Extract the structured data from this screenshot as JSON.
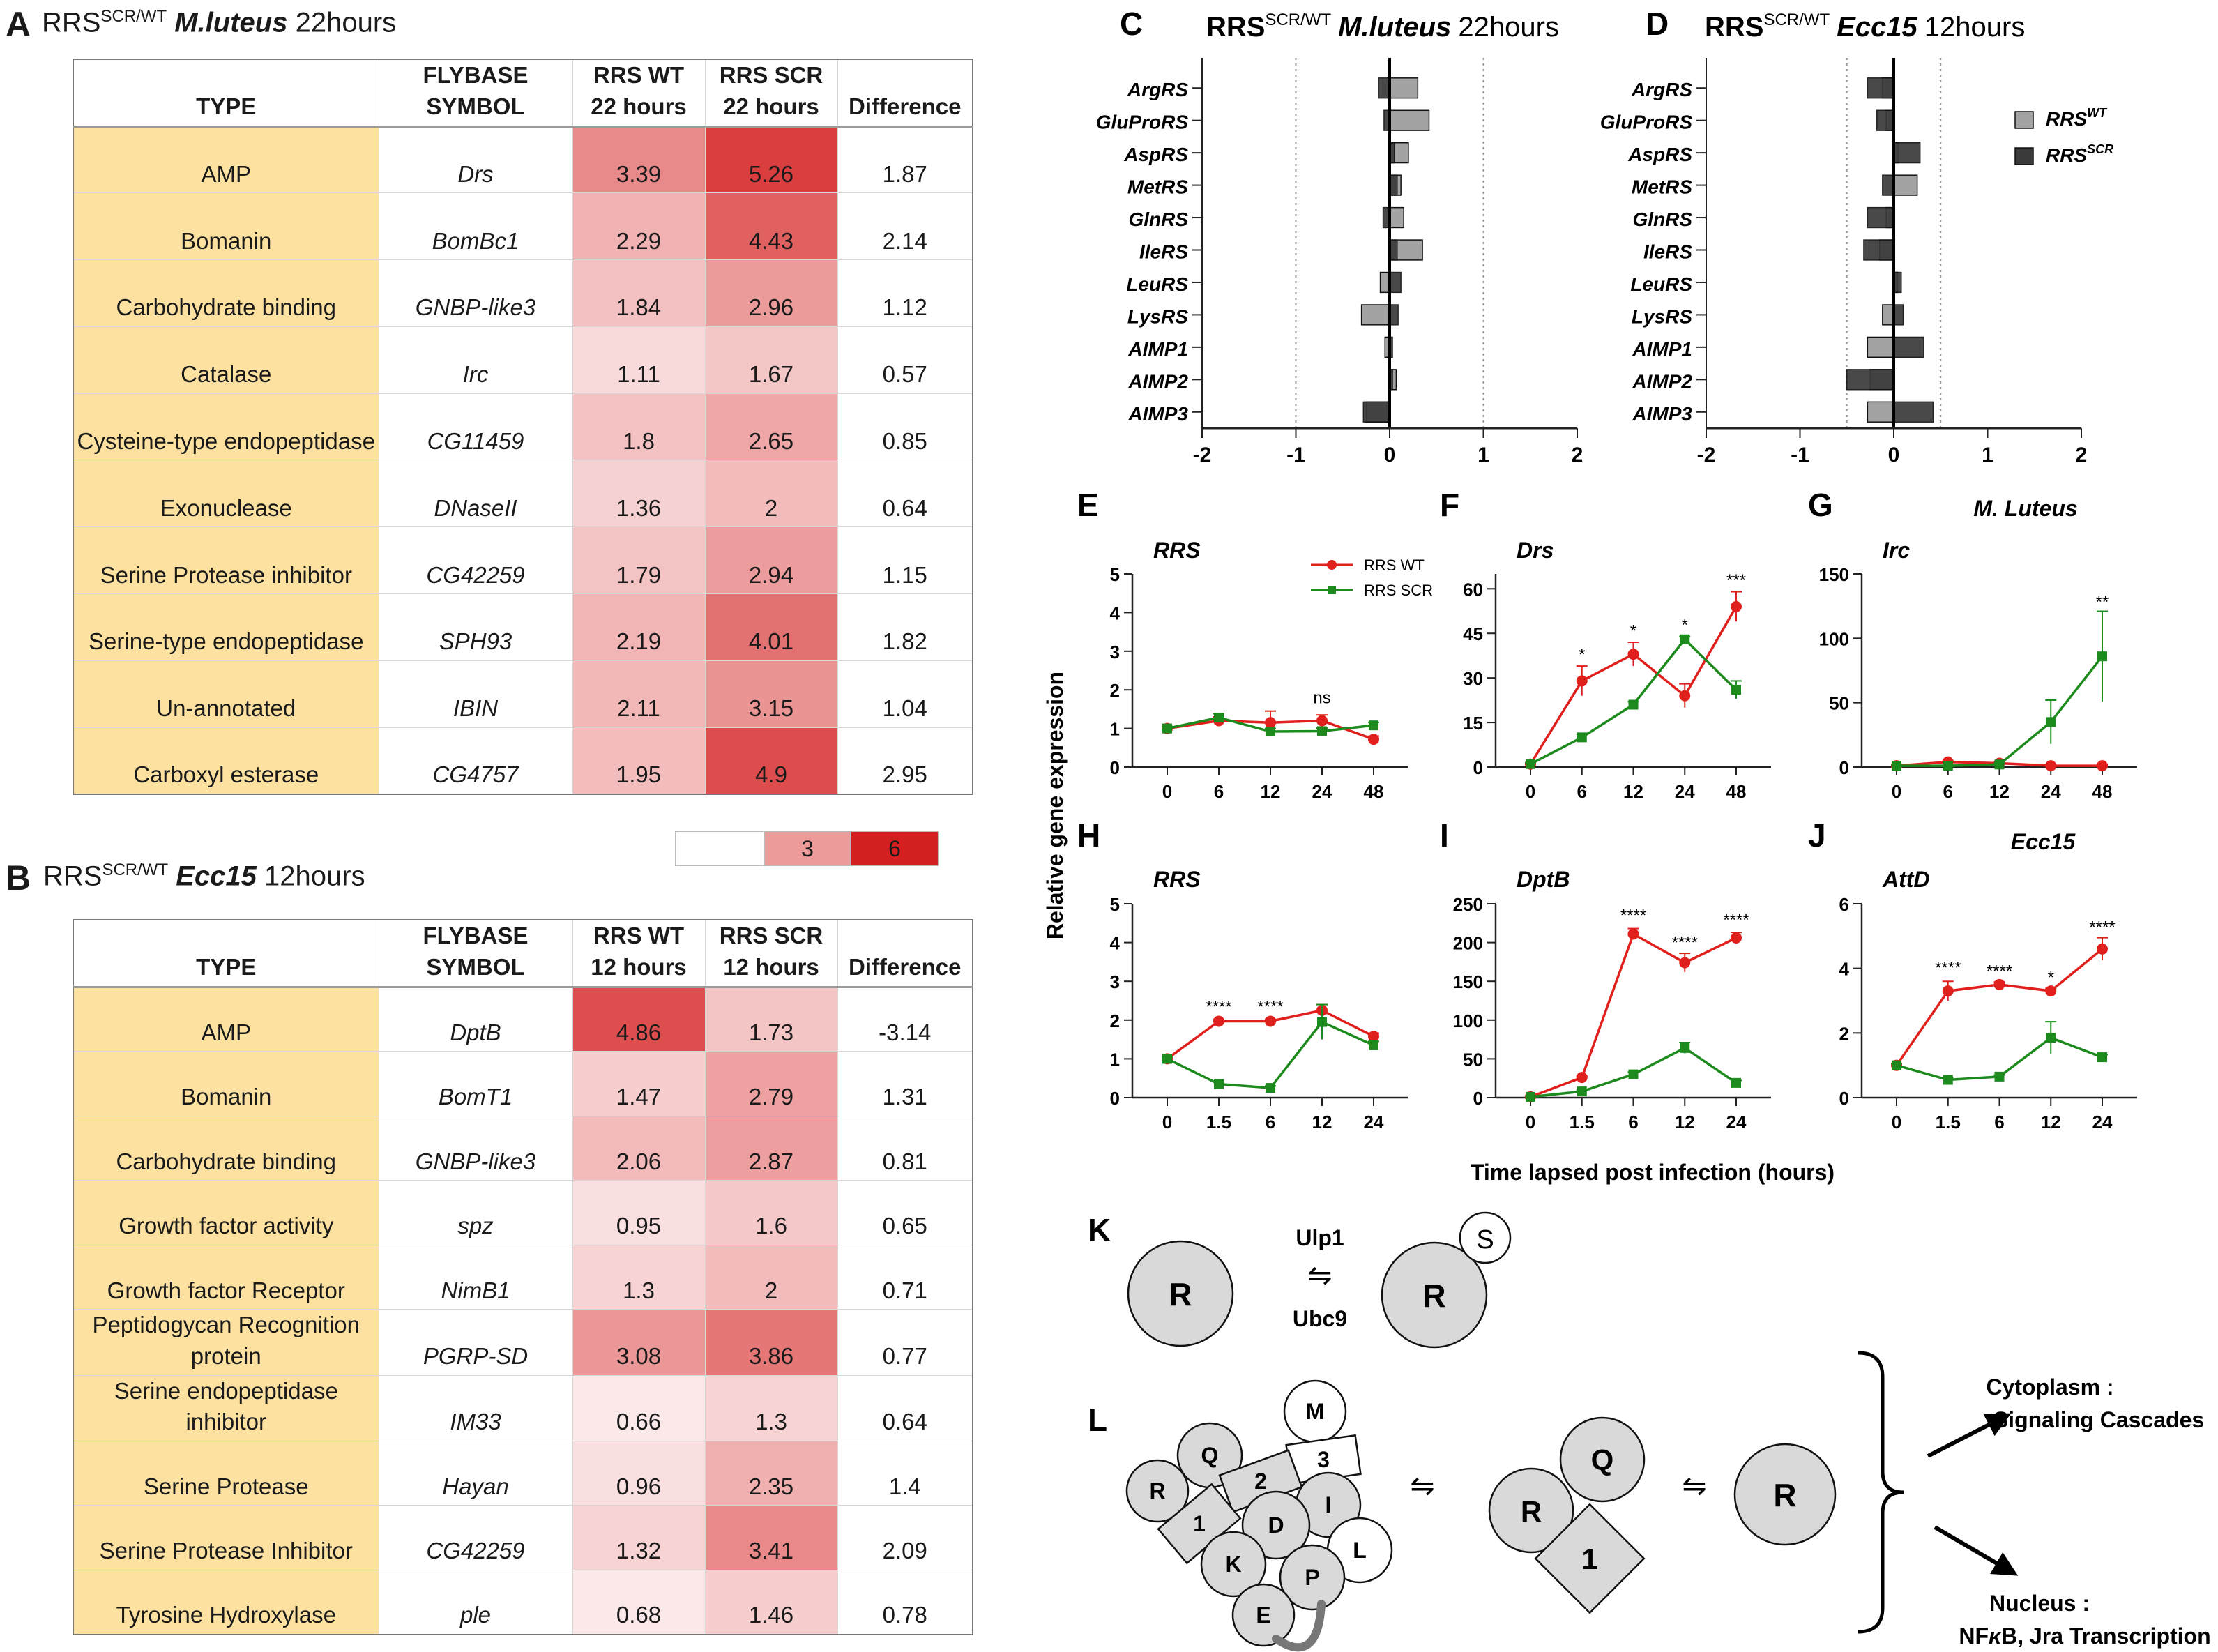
{
  "panelA": {
    "letter": "A",
    "title": {
      "prefix": "RRS",
      "sup": "SCR/WT",
      "organism": "M.luteus",
      "time": "22hours"
    },
    "headers": [
      "TYPE",
      "FLYBASE SYMBOL",
      "RRS WT 22 hours",
      "RRS SCR 22 hours",
      "Difference"
    ],
    "header_lines": [
      [
        "TYPE"
      ],
      [
        "FLYBASE",
        "SYMBOL"
      ],
      [
        "RRS WT",
        "22 hours"
      ],
      [
        "RRS SCR",
        "22 hours"
      ],
      [
        "Difference"
      ]
    ],
    "rows": [
      {
        "type": "AMP",
        "symbol": "Drs",
        "wt": "3.39",
        "scr": "5.26",
        "diff": "1.87"
      },
      {
        "type": "Bomanin",
        "symbol": "BomBc1",
        "wt": "2.29",
        "scr": "4.43",
        "diff": "2.14"
      },
      {
        "type": "Carbohydrate binding",
        "symbol": "GNBP-like3",
        "wt": "1.84",
        "scr": "2.96",
        "diff": "1.12"
      },
      {
        "type": "Catalase",
        "symbol": "Irc",
        "wt": "1.11",
        "scr": "1.67",
        "diff": "0.57"
      },
      {
        "type": "Cysteine-type endopeptidase",
        "symbol": "CG11459",
        "wt": "1.8",
        "scr": "2.65",
        "diff": "0.85"
      },
      {
        "type": "Exonuclease",
        "symbol": "DNaseII",
        "wt": "1.36",
        "scr": "2",
        "diff": "0.64"
      },
      {
        "type": "Serine Protease inhibitor",
        "symbol": "CG42259",
        "wt": "1.79",
        "scr": "2.94",
        "diff": "1.15"
      },
      {
        "type": "Serine-type endopeptidase",
        "symbol": "SPH93",
        "wt": "2.19",
        "scr": "4.01",
        "diff": "1.82"
      },
      {
        "type": "Un-annotated",
        "symbol": "IBIN",
        "wt": "2.11",
        "scr": "3.15",
        "diff": "1.04"
      },
      {
        "type": "Carboxyl esterase",
        "symbol": "CG4757",
        "wt": "1.95",
        "scr": "4.9",
        "diff": "2.95"
      }
    ]
  },
  "heat_legend": {
    "values": [
      "",
      "3",
      "6"
    ],
    "colors": [
      "#ffffff",
      "#ec9a9a",
      "#d42020"
    ]
  },
  "panelB": {
    "letter": "B",
    "title": {
      "prefix": "RRS",
      "sup": "SCR/WT",
      "organism": "Ecc15",
      "time": "12hours"
    },
    "headers": [
      "TYPE",
      "FLYBASE SYMBOL",
      "RRS WT 12 hours",
      "RRS SCR 12 hours",
      "Difference"
    ],
    "header_lines": [
      [
        "TYPE"
      ],
      [
        "FLYBASE",
        "SYMBOL"
      ],
      [
        "RRS WT",
        "12 hours"
      ],
      [
        "RRS SCR",
        "12 hours"
      ],
      [
        "Difference"
      ]
    ],
    "rows": [
      {
        "type": "AMP",
        "symbol": "DptB",
        "wt": "4.86",
        "scr": "1.73",
        "diff": "-3.14"
      },
      {
        "type": "Bomanin",
        "symbol": "BomT1",
        "wt": "1.47",
        "scr": "2.79",
        "diff": "1.31"
      },
      {
        "type": "Carbohydrate binding",
        "symbol": "GNBP-like3",
        "wt": "2.06",
        "scr": "2.87",
        "diff": "0.81"
      },
      {
        "type": "Growth factor activity",
        "symbol": "spz",
        "wt": "0.95",
        "scr": "1.6",
        "diff": "0.65"
      },
      {
        "type": "Growth factor Receptor",
        "symbol": "NimB1",
        "wt": "1.3",
        "scr": "2",
        "diff": "0.71"
      },
      {
        "type": "Peptidogycan Recognition protein",
        "symbol": "PGRP-SD",
        "wt": "3.08",
        "scr": "3.86",
        "diff": "0.77"
      },
      {
        "type": "Serine endopeptidase inhibitor",
        "symbol": "IM33",
        "wt": "0.66",
        "scr": "1.3",
        "diff": "0.64"
      },
      {
        "type": "Serine Protease",
        "symbol": "Hayan",
        "wt": "0.96",
        "scr": "2.35",
        "diff": "1.4"
      },
      {
        "type": "Serine Protease Inhibitor",
        "symbol": "CG42259",
        "wt": "1.32",
        "scr": "3.41",
        "diff": "2.09"
      },
      {
        "type": "Tyrosine Hydroxylase",
        "symbol": "ple",
        "wt": "0.68",
        "scr": "1.46",
        "diff": "0.78"
      }
    ]
  },
  "chart_data": [
    {
      "panel": "C",
      "type": "bar",
      "orientation": "horizontal",
      "title": {
        "prefix": "RRS",
        "sup": "SCR/WT",
        "organism": "M.luteus",
        "time": "22hours"
      },
      "categories": [
        "ArgRS",
        "GluProRS",
        "AspRS",
        "MetRS",
        "GlnRS",
        "IleRS",
        "LeuRS",
        "LysRS",
        "AIMP1",
        "AIMP2",
        "AIMP3"
      ],
      "series": [
        {
          "name": "RRS WT",
          "color": "#a3a3a3",
          "values": [
            0.3,
            0.42,
            0.2,
            0.12,
            0.15,
            0.35,
            -0.1,
            -0.3,
            -0.05,
            0.07,
            -0.25
          ]
        },
        {
          "name": "RRS SCR",
          "color": "#3a3a3a",
          "values": [
            -0.12,
            -0.06,
            0.05,
            0.08,
            -0.07,
            0.08,
            0.12,
            0.09,
            0.03,
            0.03,
            -0.28
          ]
        }
      ],
      "xlim": [
        -2,
        2
      ],
      "xticks": [
        "-2",
        "-1",
        "0",
        "1",
        "2"
      ],
      "reference_lines": [
        -1,
        1
      ]
    },
    {
      "panel": "D",
      "type": "bar",
      "orientation": "horizontal",
      "title": {
        "prefix": "RRS",
        "sup": "SCR/WT",
        "organism": "Ecc15",
        "time": "12hours"
      },
      "categories": [
        "ArgRS",
        "GluProRS",
        "AspRS",
        "MetRS",
        "GlnRS",
        "IleRS",
        "LeuRS",
        "LysRS",
        "AIMP1",
        "AIMP2",
        "AIMP3"
      ],
      "series": [
        {
          "name": "RRS",
          "sup": "WT",
          "color": "#a3a3a3",
          "values": [
            -0.12,
            -0.08,
            0.05,
            0.25,
            -0.08,
            -0.15,
            0.04,
            -0.12,
            -0.28,
            -0.25,
            -0.28
          ]
        },
        {
          "name": "RRS",
          "sup": "SCR",
          "color": "#3a3a3a",
          "values": [
            -0.28,
            -0.18,
            0.28,
            -0.12,
            -0.28,
            -0.32,
            0.08,
            0.1,
            0.32,
            -0.5,
            0.42
          ]
        }
      ],
      "xlim": [
        -2,
        2
      ],
      "xticks": [
        "-2",
        "-1",
        "0",
        "1",
        "2"
      ],
      "reference_lines": [
        -0.5,
        0.5
      ],
      "legend": [
        "RRS",
        "RRS"
      ],
      "legend_sup": [
        "WT",
        "SCR"
      ]
    },
    {
      "panel": "E",
      "type": "line",
      "title": "RRS",
      "x": [
        "0",
        "6",
        "12",
        "24",
        "48"
      ],
      "series": [
        {
          "name": "RRS WT",
          "color": "#e0201c",
          "values": [
            1,
            1.2,
            1.15,
            1.2,
            0.72
          ],
          "err": [
            0.05,
            0.1,
            0.3,
            0.15,
            0.08
          ]
        },
        {
          "name": "RRS SCR",
          "color": "#1c8a1c",
          "values": [
            1,
            1.28,
            0.92,
            0.93,
            1.08
          ],
          "err": [
            0.05,
            0.1,
            0.08,
            0.08,
            0.08
          ]
        }
      ],
      "ylim": [
        0,
        5
      ],
      "yticks": [
        "0",
        "1",
        "2",
        "3",
        "4",
        "5"
      ],
      "annotations": [
        {
          "x_index": 3,
          "text": "ns",
          "y": 1.65
        }
      ],
      "legend": [
        "RRS WT",
        "RRS SCR"
      ]
    },
    {
      "panel": "F",
      "type": "line",
      "title": "Drs",
      "x": [
        "0",
        "6",
        "12",
        "24",
        "48"
      ],
      "series": [
        {
          "name": "RRS WT",
          "color": "#e0201c",
          "values": [
            1,
            29,
            38,
            24,
            54
          ],
          "err": [
            0.5,
            5,
            4,
            4,
            5
          ]
        },
        {
          "name": "RRS SCR",
          "color": "#1c8a1c",
          "values": [
            1,
            10,
            21,
            43,
            26
          ],
          "err": [
            0.5,
            1,
            1,
            1,
            3
          ]
        }
      ],
      "ylim": [
        0,
        65
      ],
      "yticks": [
        "0",
        "15",
        "30",
        "45",
        "60"
      ],
      "annotations": [
        {
          "x_index": 1,
          "text": "*",
          "y": 36
        },
        {
          "x_index": 2,
          "text": "*",
          "y": 44
        },
        {
          "x_index": 3,
          "text": "*",
          "y": 46
        },
        {
          "x_index": 4,
          "text": "***",
          "y": 61
        }
      ]
    },
    {
      "panel": "G",
      "type": "line",
      "title": "Irc",
      "subtitle": "M. Luteus",
      "x": [
        "0",
        "6",
        "12",
        "24",
        "48"
      ],
      "series": [
        {
          "name": "RRS WT",
          "color": "#e0201c",
          "values": [
            1,
            4,
            3,
            1,
            1
          ],
          "err": [
            0.5,
            1,
            1,
            0.5,
            0.5
          ]
        },
        {
          "name": "RRS SCR",
          "color": "#1c8a1c",
          "values": [
            1,
            1,
            2,
            35,
            86
          ],
          "err": [
            0.5,
            0.5,
            1,
            17,
            35
          ]
        }
      ],
      "ylim": [
        0,
        150
      ],
      "yticks": [
        "0",
        "50",
        "100",
        "150"
      ],
      "annotations": [
        {
          "x_index": 4,
          "text": "**",
          "y": 124
        }
      ]
    },
    {
      "panel": "H",
      "type": "line",
      "title": "RRS",
      "x": [
        "0",
        "1.5",
        "6",
        "12",
        "24"
      ],
      "series": [
        {
          "name": "RRS WT",
          "color": "#e0201c",
          "values": [
            1,
            1.97,
            1.97,
            2.25,
            1.58
          ],
          "err": [
            0.05,
            0.05,
            0.05,
            0.15,
            0.08
          ]
        },
        {
          "name": "RRS SCR",
          "color": "#1c8a1c",
          "values": [
            1,
            0.35,
            0.25,
            1.95,
            1.35
          ],
          "err": [
            0.05,
            0.05,
            0.05,
            0.45,
            0.1
          ]
        }
      ],
      "ylim": [
        0,
        5
      ],
      "yticks": [
        "0",
        "1",
        "2",
        "3",
        "4",
        "5"
      ],
      "annotations": [
        {
          "x_index": 1,
          "text": "****",
          "y": 2.2
        },
        {
          "x_index": 2,
          "text": "****",
          "y": 2.2
        }
      ]
    },
    {
      "panel": "I",
      "type": "line",
      "title": "DptB",
      "x": [
        "0",
        "1.5",
        "6",
        "12",
        "24"
      ],
      "series": [
        {
          "name": "RRS WT",
          "color": "#e0201c",
          "values": [
            1,
            26,
            211,
            174,
            206
          ],
          "err": [
            0.5,
            2,
            7,
            12,
            7
          ]
        },
        {
          "name": "RRS SCR",
          "color": "#1c8a1c",
          "values": [
            1,
            8,
            30,
            64,
            19
          ],
          "err": [
            0.5,
            2,
            3,
            7,
            3
          ]
        }
      ],
      "ylim": [
        0,
        250
      ],
      "yticks": [
        "0",
        "50",
        "100",
        "150",
        "200",
        "250"
      ],
      "annotations": [
        {
          "x_index": 2,
          "text": "****",
          "y": 228
        },
        {
          "x_index": 3,
          "text": "****",
          "y": 193
        },
        {
          "x_index": 4,
          "text": "****",
          "y": 222
        }
      ]
    },
    {
      "panel": "J",
      "type": "line",
      "title": "AttD",
      "subtitle": "Ecc15",
      "x": [
        "0",
        "1.5",
        "6",
        "12",
        "24"
      ],
      "series": [
        {
          "name": "RRS WT",
          "color": "#e0201c",
          "values": [
            1,
            3.3,
            3.5,
            3.3,
            4.6
          ],
          "err": [
            0.05,
            0.3,
            0.08,
            0.08,
            0.35
          ]
        },
        {
          "name": "RRS SCR",
          "color": "#1c8a1c",
          "values": [
            1,
            0.55,
            0.65,
            1.85,
            1.25
          ],
          "err": [
            0.05,
            0.05,
            0.05,
            0.5,
            0.08
          ]
        }
      ],
      "ylim": [
        0,
        6
      ],
      "yticks": [
        "0",
        "2",
        "4",
        "6"
      ],
      "annotations": [
        {
          "x_index": 1,
          "text": "****",
          "y": 3.85
        },
        {
          "x_index": 2,
          "text": "****",
          "y": 3.75
        },
        {
          "x_index": 3,
          "text": "*",
          "y": 3.55
        },
        {
          "x_index": 4,
          "text": "****",
          "y": 5.1
        }
      ]
    }
  ],
  "line_axes": {
    "ylabel": "Relative gene expression",
    "xlabel": "Time lapsed post infection (hours)"
  },
  "panelK": {
    "letter": "K",
    "enzyme_top": "Ulp1",
    "enzyme_bottom": "Ubc9",
    "arrow": "⇋",
    "left_protein": "R",
    "right_protein": "R",
    "tag": "S"
  },
  "panelL": {
    "letter": "L",
    "complex": [
      "M",
      "3",
      "Q",
      "2",
      "R",
      "I",
      "1",
      "D",
      "L",
      "K",
      "P",
      "E"
    ],
    "sub_complex": [
      "R",
      "Q",
      "1"
    ],
    "free": "R",
    "arrow": "⇋",
    "outcome_top": {
      "line1": "Cytoplasm :",
      "line2": "Signaling Cascades"
    },
    "outcome_bottom": {
      "line1": "Nucleus :",
      "line2": "NF",
      "kappa": "κ",
      "line2_rest": "B, Jra Transcription"
    }
  }
}
